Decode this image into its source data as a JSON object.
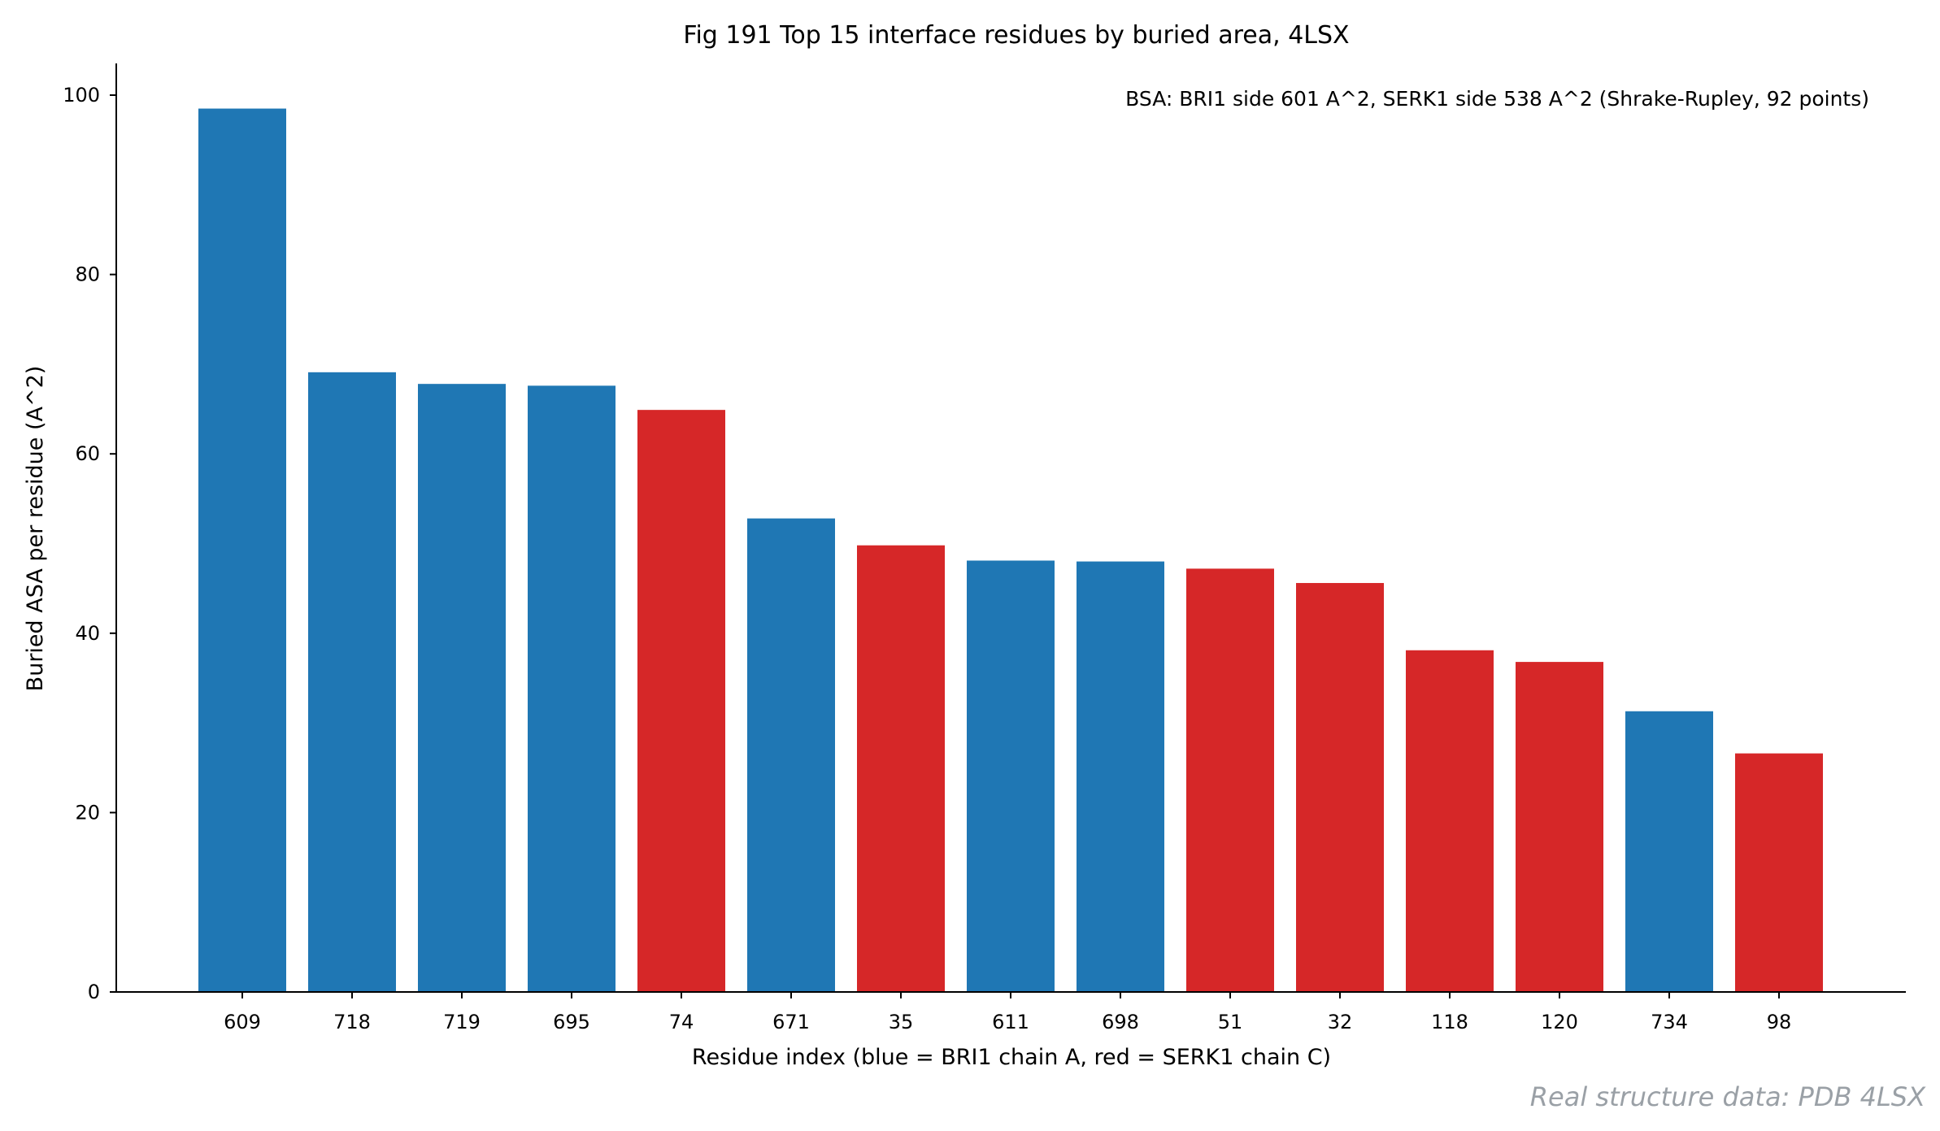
{
  "chart_data": {
    "type": "bar",
    "title": "Fig 191  Top 15 interface residues by buried area, 4LSX",
    "xlabel": "Residue index (blue = BRI1 chain A, red = SERK1 chain C)",
    "ylabel": "Buried ASA per residue (A^2)",
    "ylim": [
      0,
      103.5
    ],
    "yticks": [
      0,
      20,
      40,
      60,
      80,
      100
    ],
    "grid": false,
    "categories": [
      "609",
      "718",
      "719",
      "695",
      "74",
      "671",
      "35",
      "611",
      "698",
      "51",
      "32",
      "118",
      "120",
      "734",
      "98"
    ],
    "values": [
      98.5,
      69.1,
      67.8,
      67.6,
      64.9,
      52.8,
      49.8,
      48.1,
      48.0,
      47.2,
      45.6,
      38.1,
      36.8,
      31.3,
      26.6
    ],
    "chains": [
      "A",
      "A",
      "A",
      "A",
      "C",
      "A",
      "C",
      "A",
      "A",
      "C",
      "C",
      "C",
      "C",
      "A",
      "C"
    ],
    "colors": {
      "A": "#1f77b4",
      "C": "#d62728"
    },
    "annotation": "BSA: BRI1 side 601 A^2, SERK1 side 538 A^2 (Shrake-Rupley, 92 points)"
  },
  "credit": "Real structure data: PDB 4LSX"
}
